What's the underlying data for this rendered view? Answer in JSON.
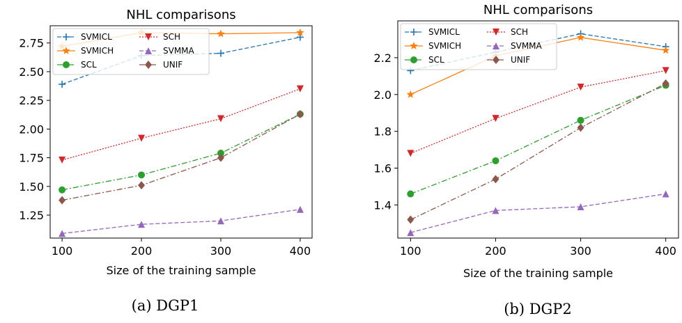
{
  "captions": [
    "(a) DGP1",
    "(b) DGP2"
  ],
  "chart_data": [
    {
      "type": "line",
      "title": "NHL comparisons",
      "xlabel": "Size of the training sample",
      "ylabel": "",
      "x": [
        100,
        200,
        300,
        400
      ],
      "xlim": [
        85,
        415
      ],
      "ylim": [
        1.05,
        2.9
      ],
      "xticks": [
        100,
        200,
        300,
        400
      ],
      "yticks": [
        1.25,
        1.5,
        1.75,
        2.0,
        2.25,
        2.5,
        2.75
      ],
      "ytick_labels": [
        "1.25",
        "1.50",
        "1.75",
        "2.00",
        "2.25",
        "2.50",
        "2.75"
      ],
      "grid": false,
      "legend_position": "top-left",
      "series": [
        {
          "name": "SVMICL",
          "values": [
            2.39,
            2.64,
            2.66,
            2.8
          ],
          "color": "#1f77b4",
          "dash": "6,3",
          "marker": "plus"
        },
        {
          "name": "SVMICH",
          "values": [
            2.72,
            2.84,
            2.83,
            2.84
          ],
          "color": "#ff7f0e",
          "dash": "",
          "marker": "star"
        },
        {
          "name": "SCL",
          "values": [
            1.47,
            1.6,
            1.79,
            2.13
          ],
          "color": "#2ca02c",
          "dash": "8,3,2,3",
          "marker": "circle"
        },
        {
          "name": "SCH",
          "values": [
            1.73,
            1.92,
            2.09,
            2.35
          ],
          "color": "#d62728",
          "dash": "2,2",
          "marker": "triangle-down"
        },
        {
          "name": "SVMMA",
          "values": [
            1.09,
            1.17,
            1.2,
            1.3
          ],
          "color": "#9467bd",
          "dash": "6,3",
          "marker": "triangle-up"
        },
        {
          "name": "UNIF",
          "values": [
            1.38,
            1.51,
            1.75,
            2.13
          ],
          "color": "#8c564b",
          "dash": "8,3,2,3",
          "marker": "diamond"
        }
      ]
    },
    {
      "type": "line",
      "title": "NHL comparisons",
      "xlabel": "Size of the training sample",
      "ylabel": "",
      "x": [
        100,
        200,
        300,
        400
      ],
      "xlim": [
        85,
        415
      ],
      "ylim": [
        1.22,
        2.4
      ],
      "xticks": [
        100,
        200,
        300,
        400
      ],
      "yticks": [
        1.4,
        1.6,
        1.8,
        2.0,
        2.2
      ],
      "ytick_labels": [
        "1.4",
        "1.6",
        "1.8",
        "2.0",
        "2.2"
      ],
      "grid": false,
      "legend_position": "top-left",
      "series": [
        {
          "name": "SVMICL",
          "values": [
            2.13,
            2.23,
            2.33,
            2.26
          ],
          "color": "#1f77b4",
          "dash": "6,3",
          "marker": "plus"
        },
        {
          "name": "SVMICH",
          "values": [
            2.0,
            2.21,
            2.31,
            2.24
          ],
          "color": "#ff7f0e",
          "dash": "",
          "marker": "star"
        },
        {
          "name": "SCL",
          "values": [
            1.46,
            1.64,
            1.86,
            2.05
          ],
          "color": "#2ca02c",
          "dash": "8,3,2,3",
          "marker": "circle"
        },
        {
          "name": "SCH",
          "values": [
            1.68,
            1.87,
            2.04,
            2.13
          ],
          "color": "#d62728",
          "dash": "2,2",
          "marker": "triangle-down"
        },
        {
          "name": "SVMMA",
          "values": [
            1.25,
            1.37,
            1.39,
            1.46
          ],
          "color": "#9467bd",
          "dash": "6,3",
          "marker": "triangle-up"
        },
        {
          "name": "UNIF",
          "values": [
            1.32,
            1.54,
            1.82,
            2.06
          ],
          "color": "#8c564b",
          "dash": "8,3,2,3",
          "marker": "diamond"
        }
      ]
    }
  ]
}
